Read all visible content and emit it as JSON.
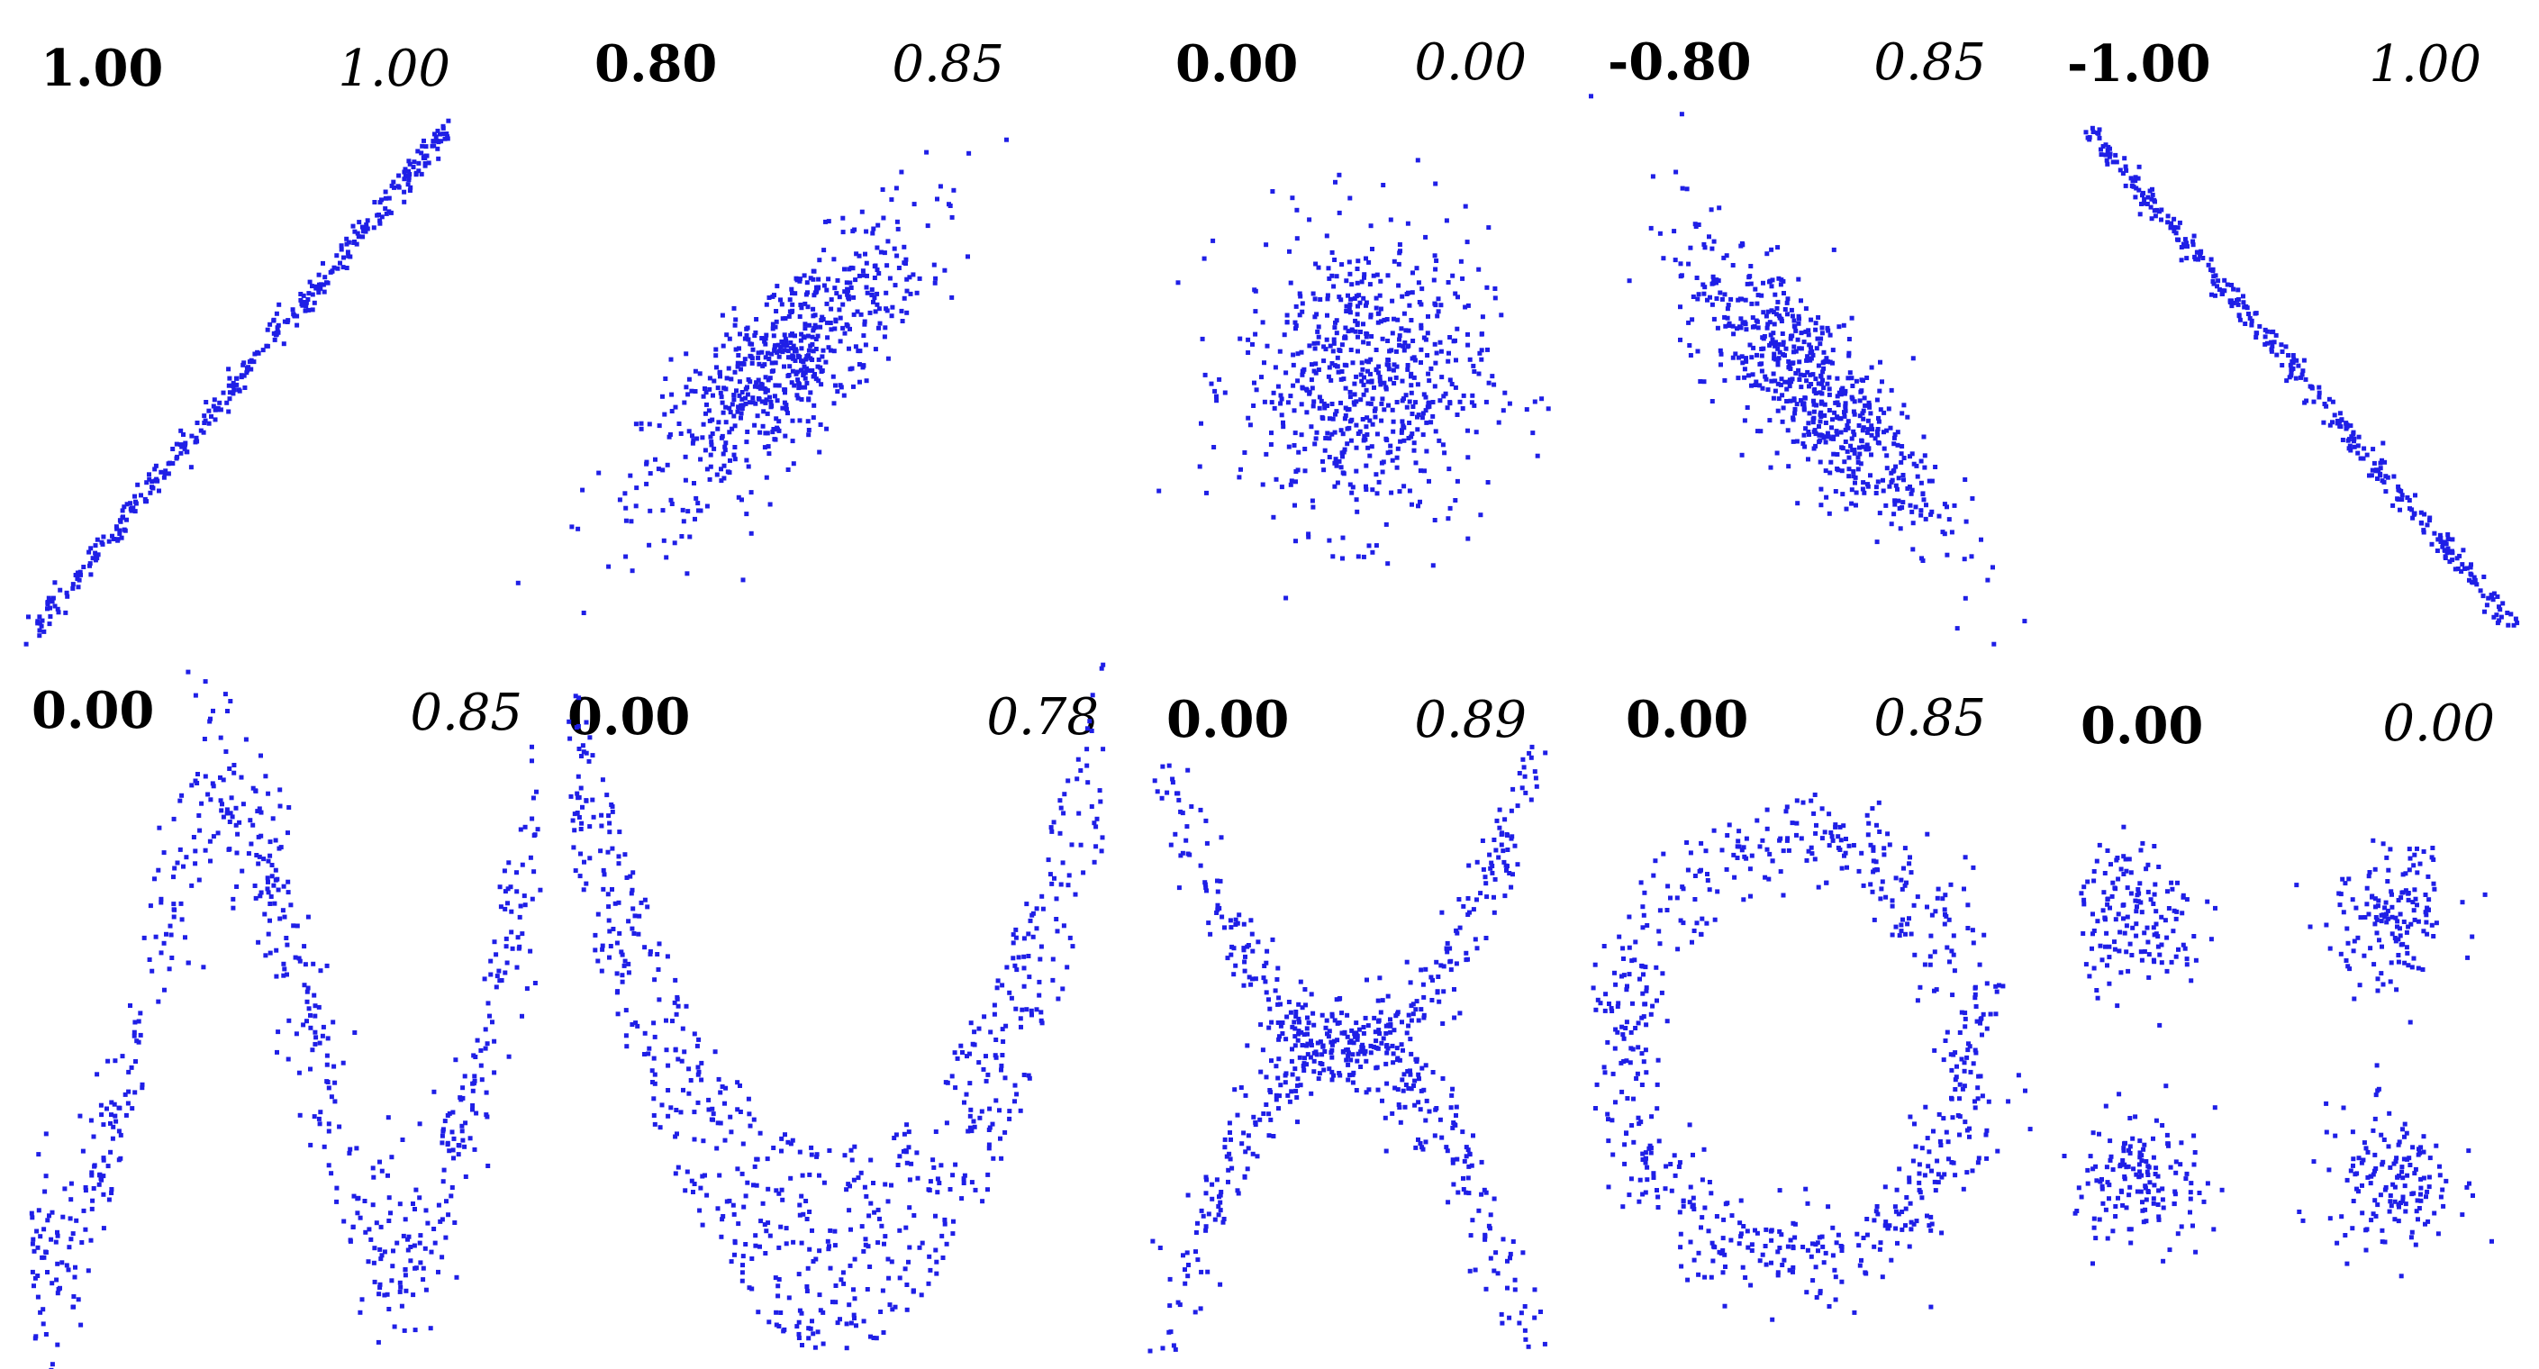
{
  "colors": {
    "points": "#1f1fe6",
    "background": "#ffffff",
    "text": "#000000"
  },
  "chart_data": [
    {
      "type": "scatter",
      "shape": "linear",
      "pearson": "1.00",
      "mi": "1.00",
      "n": 360,
      "slope": 1,
      "noise": 0.012
    },
    {
      "type": "scatter",
      "shape": "gaussian",
      "pearson": "0.80",
      "mi": "0.85",
      "n": 650,
      "rho": 0.8
    },
    {
      "type": "scatter",
      "shape": "gaussian",
      "pearson": "0.00",
      "mi": "0.00",
      "n": 650,
      "rho": 0.0
    },
    {
      "type": "scatter",
      "shape": "gaussian",
      "pearson": "-0.80",
      "mi": "0.85",
      "n": 650,
      "rho": -0.8
    },
    {
      "type": "scatter",
      "shape": "linear",
      "pearson": "-1.00",
      "mi": "1.00",
      "n": 360,
      "slope": -1,
      "noise": 0.012
    },
    {
      "type": "scatter",
      "shape": "sine",
      "pearson": "0.00",
      "mi": "0.85",
      "n": 600
    },
    {
      "type": "scatter",
      "shape": "parabola",
      "pearson": "0.00",
      "mi": "0.78",
      "n": 650
    },
    {
      "type": "scatter",
      "shape": "x-cross",
      "pearson": "0.00",
      "mi": "0.89",
      "n": 650
    },
    {
      "type": "scatter",
      "shape": "ring",
      "pearson": "0.00",
      "mi": "0.85",
      "n": 650
    },
    {
      "type": "scatter",
      "shape": "four-clusters",
      "pearson": "0.00",
      "mi": "0.00",
      "n": 600
    }
  ]
}
